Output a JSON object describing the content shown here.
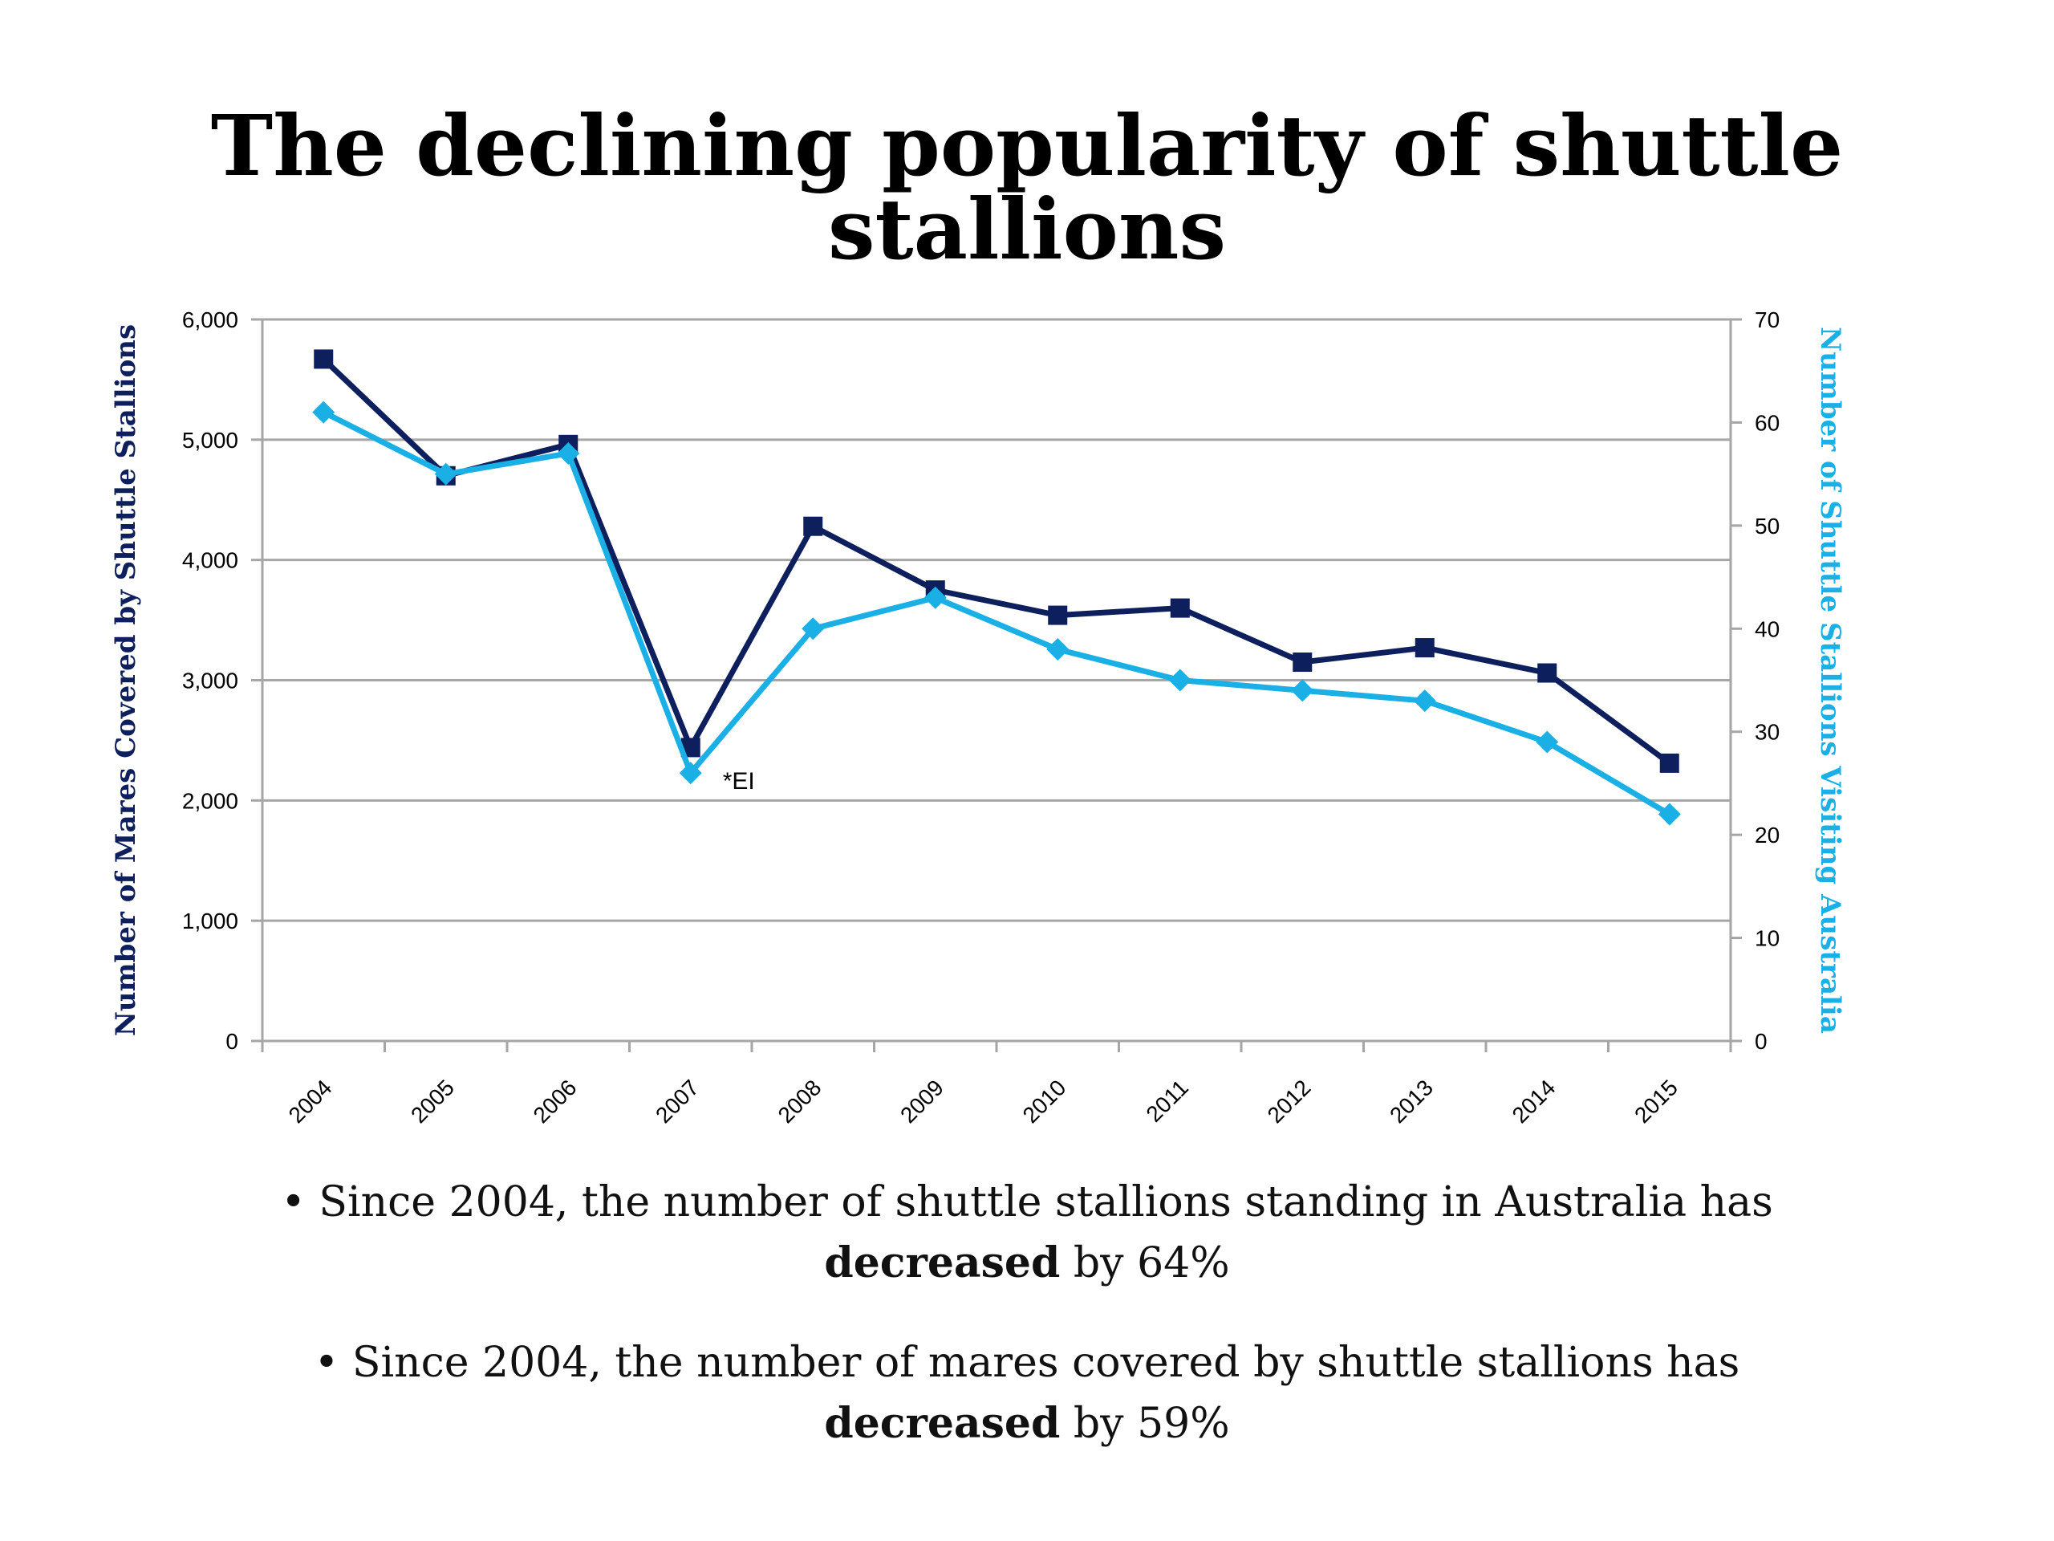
{
  "slide": {
    "title": "The declining popularity of shuttle stallions"
  },
  "bullets": [
    {
      "prefix": "• Since 2004, the number of shuttle stallions standing in Australia has",
      "bold": "decreased",
      "suffix": " by 64%"
    },
    {
      "prefix": "• Since 2004, the number of mares covered by shuttle stallions has",
      "bold": "decreased",
      "suffix": " by  59%"
    }
  ],
  "colors": {
    "mares_series": "#0d1f5c",
    "stallions_series": "#1ab0e6",
    "grid": "#a6a6a6",
    "axis_text": "#000000"
  },
  "chart_data": {
    "type": "line",
    "title": "",
    "categories": [
      "2004",
      "2005",
      "2006",
      "2007",
      "2008",
      "2009",
      "2010",
      "2011",
      "2012",
      "2013",
      "2014",
      "2015"
    ],
    "series": [
      {
        "axis": "left",
        "marker": "square",
        "values": [
          5670,
          4700,
          4960,
          2440,
          4280,
          3750,
          3540,
          3600,
          3150,
          3270,
          3060,
          2310
        ]
      },
      {
        "axis": "right",
        "marker": "diamond",
        "values": [
          61,
          55,
          57,
          26,
          40,
          43,
          38,
          35,
          34,
          33,
          29,
          22
        ]
      }
    ],
    "y_left": {
      "label": "Number of Mares Covered by Shuttle Stallions",
      "range": [
        0,
        6000
      ],
      "ticks": [
        "0",
        "1,000",
        "2,000",
        "3,000",
        "4,000",
        "5,000",
        "6,000"
      ]
    },
    "y_right": {
      "label": "Number of Shuttle Stallions Visiting Australia",
      "range": [
        0,
        70
      ],
      "ticks": [
        "0",
        "10",
        "20",
        "30",
        "40",
        "50",
        "60",
        "70"
      ]
    },
    "annotations": [
      {
        "text": "*EI",
        "category": "2007"
      }
    ],
    "grid": true,
    "legend": "none"
  }
}
